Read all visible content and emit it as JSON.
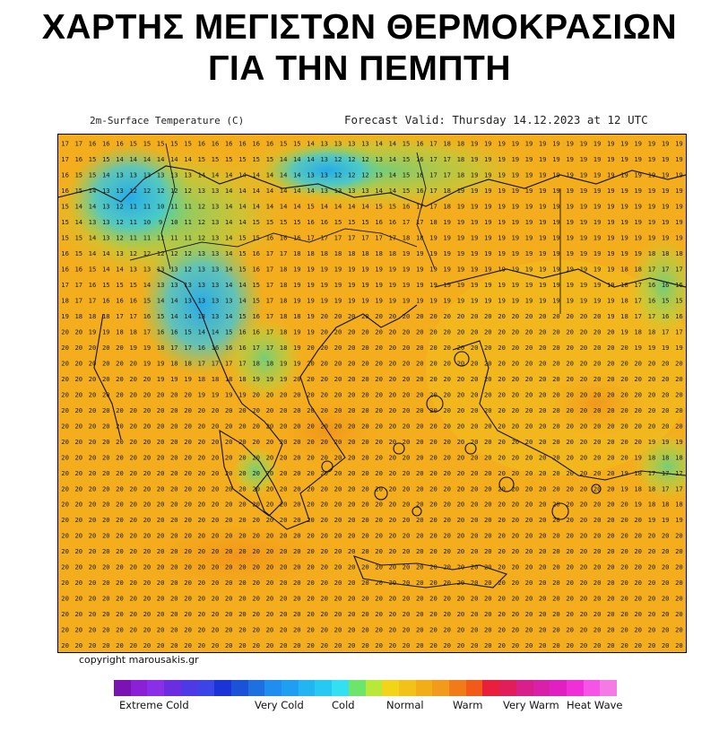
{
  "header": {
    "title_line1": "ΧΑΡΤΗΣ ΜΕΓΙΣΤΩΝ ΘΕΡΜΟΚΡΑΣΙΩΝ",
    "title_line2": "ΓΙΑ ΤΗΝ ΠΕΜΠΤΗ"
  },
  "map": {
    "variable_label": "2m-Surface Temperature (C)",
    "forecast_label": "Forecast Valid:  Thursday 14.12.2023 at 12 UTC",
    "region": "Greece / Aegean",
    "grid_cols": 46,
    "grid_rows": 33,
    "base_colors": {
      "cold": "#29c6ef",
      "cool": "#7fd36a",
      "mild": "#f2b519",
      "warm": "#f0a21a"
    }
  },
  "footer": {
    "copyright": "copyright marousakis.gr"
  },
  "legend": {
    "colors": [
      "#7a13b2",
      "#8a21d6",
      "#8b2ee8",
      "#6a2de0",
      "#4f38e6",
      "#3d44e6",
      "#1a34d8",
      "#1a52d8",
      "#1e6fe0",
      "#1f8ef0",
      "#1e9ff2",
      "#22b5f2",
      "#26c9f2",
      "#33e0f2",
      "#6ce56a",
      "#b7e83a",
      "#f2d519",
      "#f2c219",
      "#f2ae19",
      "#f29a19",
      "#f27b19",
      "#f25a19",
      "#e8203c",
      "#e21e5a",
      "#d8208a",
      "#d820a8",
      "#e020c0",
      "#ee30d6",
      "#f554e6",
      "#f57ae6"
    ],
    "labels": [
      {
        "text": "Extreme Cold"
      },
      {
        "text": "Very Cold"
      },
      {
        "text": "Cold"
      },
      {
        "text": "Normal"
      },
      {
        "text": "Warm"
      },
      {
        "text": "Very Warm"
      },
      {
        "text": "Heat Wave"
      }
    ]
  }
}
